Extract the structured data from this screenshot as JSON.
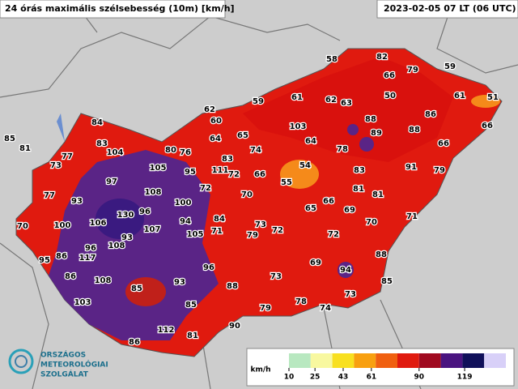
{
  "header": {
    "title": "24 órás maximális szélsebesség (10m) [km/h]",
    "time": "2023-02-05 07 LT (06 UTC)"
  },
  "stations": [
    58,
    82,
    79,
    59,
    66,
    50,
    61,
    51,
    59,
    61,
    62,
    63,
    62,
    60,
    84,
    88,
    86,
    66,
    85,
    81,
    83,
    104,
    80,
    76,
    64,
    65,
    103,
    89,
    88,
    77,
    74,
    64,
    78,
    66,
    73,
    105,
    83,
    111,
    72,
    95,
    66,
    54,
    83,
    91,
    79,
    97,
    55,
    108,
    72,
    70,
    81,
    81,
    77,
    93,
    100,
    66,
    65,
    69,
    130,
    96,
    106,
    107,
    94,
    84,
    73,
    70,
    71,
    70,
    100,
    93,
    72,
    71,
    105,
    79,
    72,
    96,
    108,
    117,
    86,
    95,
    69,
    94,
    88,
    96,
    86,
    108,
    73,
    93,
    85,
    88,
    85,
    73,
    103,
    85,
    78,
    74,
    79,
    112,
    90,
    81,
    86
  ],
  "legend": {
    "unit": "km/h",
    "ticks": [
      10,
      25,
      43,
      61,
      90,
      119
    ]
  },
  "logo": {
    "lines": [
      "ORSZÁGOS",
      "METEOROLÓGIAI",
      "SZOLGÁLAT"
    ]
  }
}
